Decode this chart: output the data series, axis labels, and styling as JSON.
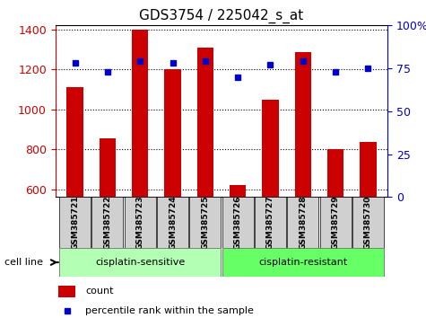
{
  "title": "GDS3754 / 225042_s_at",
  "samples": [
    "GSM385721",
    "GSM385722",
    "GSM385723",
    "GSM385724",
    "GSM385725",
    "GSM385726",
    "GSM385727",
    "GSM385728",
    "GSM385729",
    "GSM385730"
  ],
  "counts": [
    1110,
    855,
    1400,
    1200,
    1310,
    620,
    1050,
    1285,
    800,
    835
  ],
  "percentile_ranks": [
    78,
    73,
    79,
    78,
    79,
    70,
    77,
    79,
    73,
    75
  ],
  "ylim_left": [
    560,
    1420
  ],
  "ylim_right": [
    0,
    100
  ],
  "yticks_left": [
    600,
    800,
    1000,
    1200,
    1400
  ],
  "yticks_right": [
    0,
    25,
    50,
    75,
    100
  ],
  "bar_color": "#cc0000",
  "dot_color": "#0000cc",
  "groups": [
    {
      "label": "cisplatin-sensitive",
      "indices": [
        0,
        1,
        2,
        3,
        4
      ],
      "color": "#b3ffb3"
    },
    {
      "label": "cisplatin-resistant",
      "indices": [
        5,
        6,
        7,
        8,
        9
      ],
      "color": "#66ff66"
    }
  ],
  "cell_line_label": "cell line",
  "legend_count_label": "count",
  "legend_percentile_label": "percentile rank within the sample",
  "bar_color_legend": "#cc0000",
  "dot_color_legend": "#0000cc",
  "tick_label_color_left": "#cc0000",
  "tick_label_color_right": "#0000cc",
  "sample_box_color": "#d0d0d0"
}
